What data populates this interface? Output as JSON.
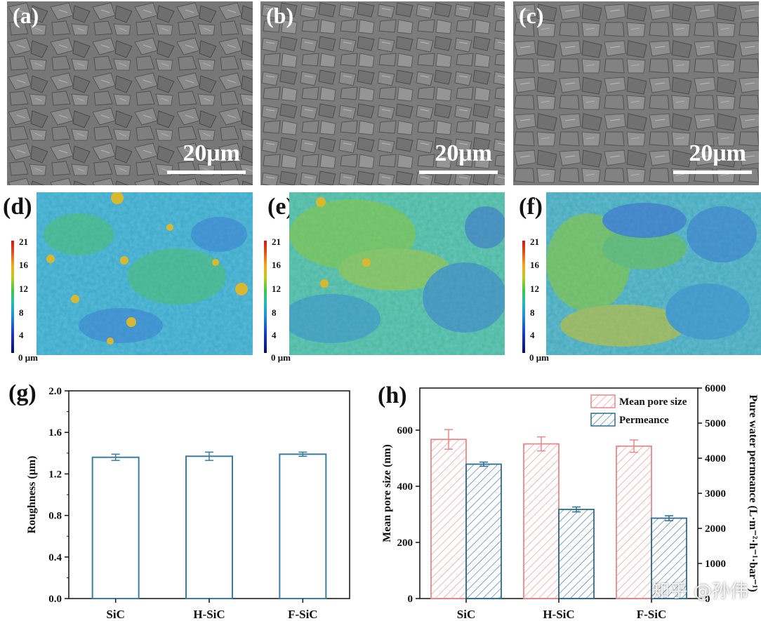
{
  "panels": {
    "a": {
      "label": "(a)",
      "scale": "20μm"
    },
    "b": {
      "label": "(b)",
      "scale": "20μm"
    },
    "c": {
      "label": "(c)",
      "scale": "20μm"
    },
    "d": {
      "label": "(d)"
    },
    "e": {
      "label": "(e)"
    },
    "f": {
      "label": "(f)"
    },
    "g": {
      "label": "(g)"
    },
    "h": {
      "label": "(h)"
    }
  },
  "colorbar": {
    "ticks": [
      "21",
      "16",
      "12",
      "8",
      "4",
      "0 μm"
    ]
  },
  "watermark": "知乎 @孙伟",
  "chart_data": [
    {
      "type": "bar",
      "id": "g",
      "title": "",
      "categories": [
        "SiC",
        "H-SiC",
        "F-SiC"
      ],
      "values": [
        1.36,
        1.37,
        1.39
      ],
      "errors": [
        0.03,
        0.04,
        0.02
      ],
      "ylabel": "Roughness (μm)",
      "xlabel": "",
      "ylim": [
        0.0,
        2.0
      ],
      "yticks": [
        "0.0",
        "0.4",
        "0.8",
        "1.2",
        "1.6",
        "2.0"
      ],
      "color": "#3b7ea1"
    },
    {
      "type": "bar",
      "id": "h",
      "title": "",
      "categories": [
        "SiC",
        "H-SiC",
        "F-SiC"
      ],
      "series": [
        {
          "name": "Mean pore size",
          "axis": "left",
          "values": [
            567,
            551,
            543
          ],
          "errors": [
            35,
            25,
            22
          ],
          "color": "#e8898c"
        },
        {
          "name": "Permeance",
          "axis": "right",
          "values": [
            3830,
            2540,
            2290
          ],
          "errors": [
            60,
            70,
            70
          ],
          "color": "#2e6b8f"
        }
      ],
      "ylabel": "Mean pore size (nm)",
      "ylabel_right": "Pure water permeance (L·m⁻²·h⁻¹·bar⁻¹)",
      "ylim": [
        0,
        750
      ],
      "ylim_right": [
        0,
        6000
      ],
      "yticks": [
        "0",
        "200",
        "400",
        "600"
      ],
      "yticks_right": [
        "0",
        "1000",
        "2000",
        "3000",
        "4000",
        "5000",
        "6000"
      ],
      "legend_position": "top-right"
    }
  ]
}
